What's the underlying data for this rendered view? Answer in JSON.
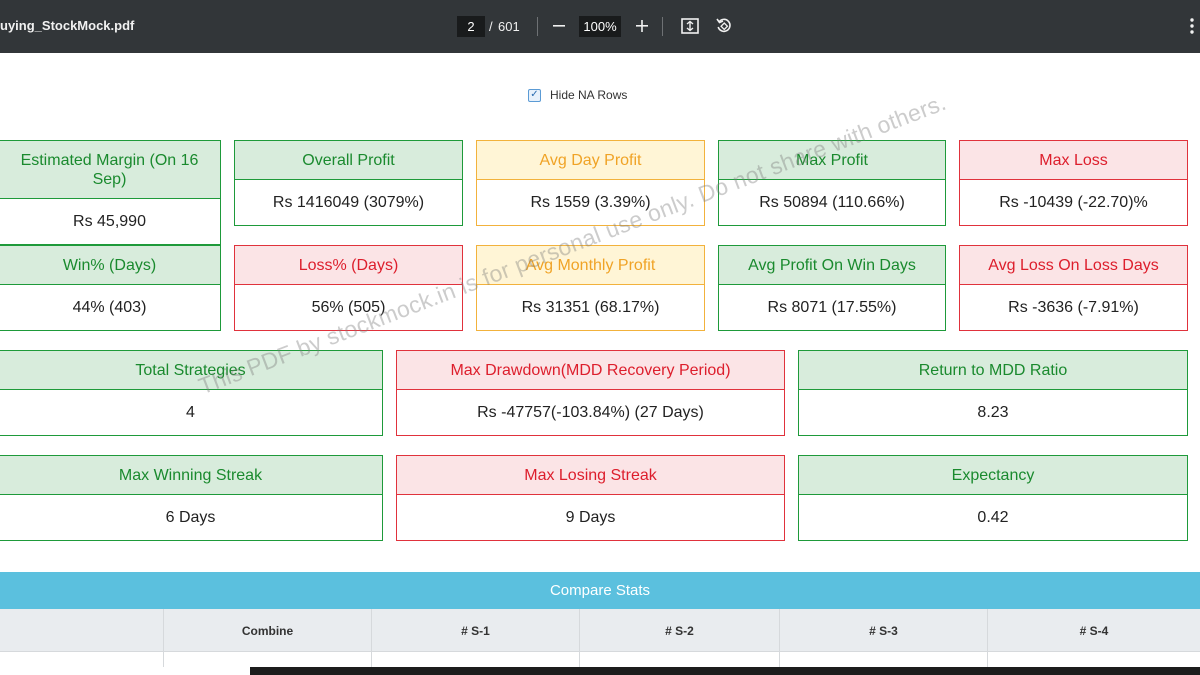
{
  "toolbar": {
    "filename": "uying_StockMock.pdf",
    "current_page": "2",
    "page_separator": "/",
    "total_pages": "601",
    "zoom": "100%",
    "icons": [
      "minus-icon",
      "plus-icon",
      "fit-page-icon",
      "rotate-icon",
      "more-vert-icon"
    ]
  },
  "filter": {
    "hide_na_label": "Hide NA Rows",
    "hide_na_checked": true
  },
  "stats": {
    "estimated_margin": {
      "label": "Estimated Margin  (On 16 Sep)",
      "value": "Rs 45,990"
    },
    "overall_profit": {
      "label": "Overall Profit",
      "value": "Rs 1416049 (3079%)"
    },
    "avg_day_profit": {
      "label": "Avg Day Profit",
      "value": "Rs 1559 (3.39%)"
    },
    "max_profit": {
      "label": "Max Profit",
      "value": "Rs 50894 (110.66%)"
    },
    "max_loss": {
      "label": "Max Loss",
      "value": "Rs -10439 (-22.70)%"
    },
    "win_pct": {
      "label": "Win% (Days)",
      "value": "44% (403)"
    },
    "loss_pct": {
      "label": "Loss% (Days)",
      "value": "56% (505)"
    },
    "avg_monthly_profit": {
      "label": "Avg Monthly Profit",
      "value": "Rs 31351 (68.17%)"
    },
    "avg_profit_win_days": {
      "label": "Avg Profit On Win Days",
      "value": "Rs 8071 (17.55%)"
    },
    "avg_loss_loss_days": {
      "label": "Avg Loss On Loss Days",
      "value": "Rs -3636 (-7.91%)"
    },
    "total_strategies": {
      "label": "Total Strategies",
      "value": "4"
    },
    "max_drawdown": {
      "label": "Max Drawdown(MDD Recovery Period)",
      "value": "Rs -47757(-103.84%) (27 Days)"
    },
    "return_mdd_ratio": {
      "label": "Return to MDD Ratio",
      "value": "8.23"
    },
    "max_winning_streak": {
      "label": "Max Winning Streak",
      "value": "6 Days"
    },
    "max_losing_streak": {
      "label": "Max Losing Streak",
      "value": "9 Days"
    },
    "expectancy": {
      "label": "Expectancy",
      "value": "0.42"
    }
  },
  "watermark": "This PDF by stockmock.in is for personal use only. Do not share with others.",
  "compare": {
    "title": "Compare Stats",
    "columns": [
      "",
      "Combine",
      "# S-1",
      "# S-2",
      "# S-3",
      "# S-4"
    ]
  },
  "colors": {
    "green": "#1a8a2e",
    "red": "#dd1e2c",
    "yellow": "#f0a326",
    "compare_bar": "#5bc0de",
    "toolbar": "#323639"
  }
}
